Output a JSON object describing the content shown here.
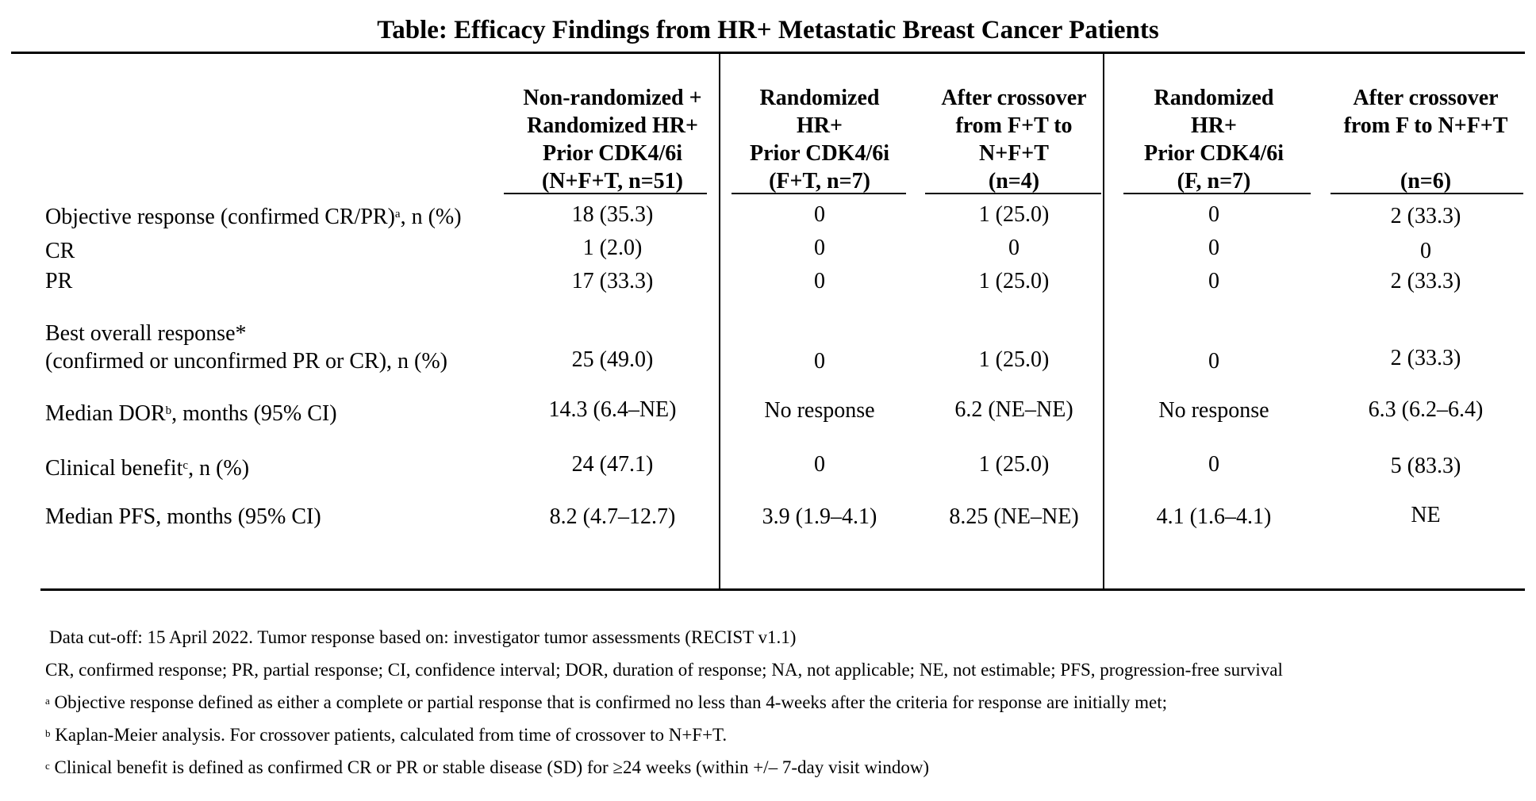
{
  "title": "Table:  Efficacy Findings from HR+ Metastatic Breast Cancer Patients",
  "columns": [
    {
      "lines": [
        "Non-randomized +",
        "Randomized HR+",
        "Prior CDK4/6i",
        "(N+F+T, n=51)"
      ]
    },
    {
      "lines": [
        "Randomized",
        "HR+",
        "Prior CDK4/6i",
        "(F+T, n=7)"
      ]
    },
    {
      "lines": [
        "After crossover",
        "from F+T to",
        "N+F+T",
        "(n=4)"
      ]
    },
    {
      "lines": [
        "Randomized",
        "HR+",
        "Prior CDK4/6i",
        "(F, n=7)"
      ]
    },
    {
      "lines": [
        "After crossover",
        "from F to N+F+T",
        "",
        "(n=6)"
      ]
    }
  ],
  "rows": [
    {
      "label": "Objective response (confirmed CR/PR)",
      "sup": "a",
      "label_suffix": ", n (%)",
      "values": [
        "18 (35.3)",
        "0",
        "1 (25.0)",
        "0",
        "2 (33.3)"
      ]
    },
    {
      "label": "CR",
      "values": [
        "1 (2.0)",
        "0",
        "0",
        "0",
        "0"
      ]
    },
    {
      "label": "PR",
      "values": [
        "17 (33.3)",
        "0",
        "1 (25.0)",
        "0",
        "2 (33.3)"
      ]
    },
    {
      "label": "Best overall response*",
      "label2": "(confirmed or unconfirmed PR or CR), n (%)",
      "values": [
        "25 (49.0)",
        "0",
        "1 (25.0)",
        "0",
        "2 (33.3)"
      ]
    },
    {
      "label": "Median DOR",
      "sup": "b",
      "label_suffix": ", months (95% CI)",
      "values": [
        "14.3 (6.4–NE)",
        "No response",
        "6.2 (NE–NE)",
        "No response",
        "6.3 (6.2–6.4)"
      ]
    },
    {
      "label": "Clinical benefit",
      "sup": "c",
      "label_suffix": ", n (%)",
      "values": [
        "24 (47.1)",
        "0",
        "1 (25.0)",
        "0",
        "5 (83.3)"
      ]
    },
    {
      "label": "Median PFS, months (95% CI)",
      "values": [
        "8.2 (4.7–12.7)",
        "3.9 (1.9–4.1)",
        "8.25 (NE–NE)",
        "4.1 (1.6–4.1)",
        "NE"
      ]
    }
  ],
  "footnotes": [
    {
      "sup": "",
      "text": "Data cut-off: 15 April 2022. Tumor response based on: investigator tumor assessments (RECIST v1.1)"
    },
    {
      "sup": "",
      "text": "CR, confirmed response; PR, partial response; CI, confidence interval; DOR, duration of response; NA, not applicable; NE, not estimable; PFS, progression-free survival"
    },
    {
      "sup": "a",
      "text": " Objective response defined as either a complete or partial response that is confirmed no less than 4-weeks after the criteria for response are initially met;"
    },
    {
      "sup": "b",
      "text": " Kaplan-Meier analysis. For crossover patients, calculated from time of crossover to N+F+T."
    },
    {
      "sup": "c",
      "text": " Clinical benefit is defined as confirmed CR or PR or stable disease (SD) for ≥24 weeks (within +/– 7-day visit window)"
    }
  ]
}
